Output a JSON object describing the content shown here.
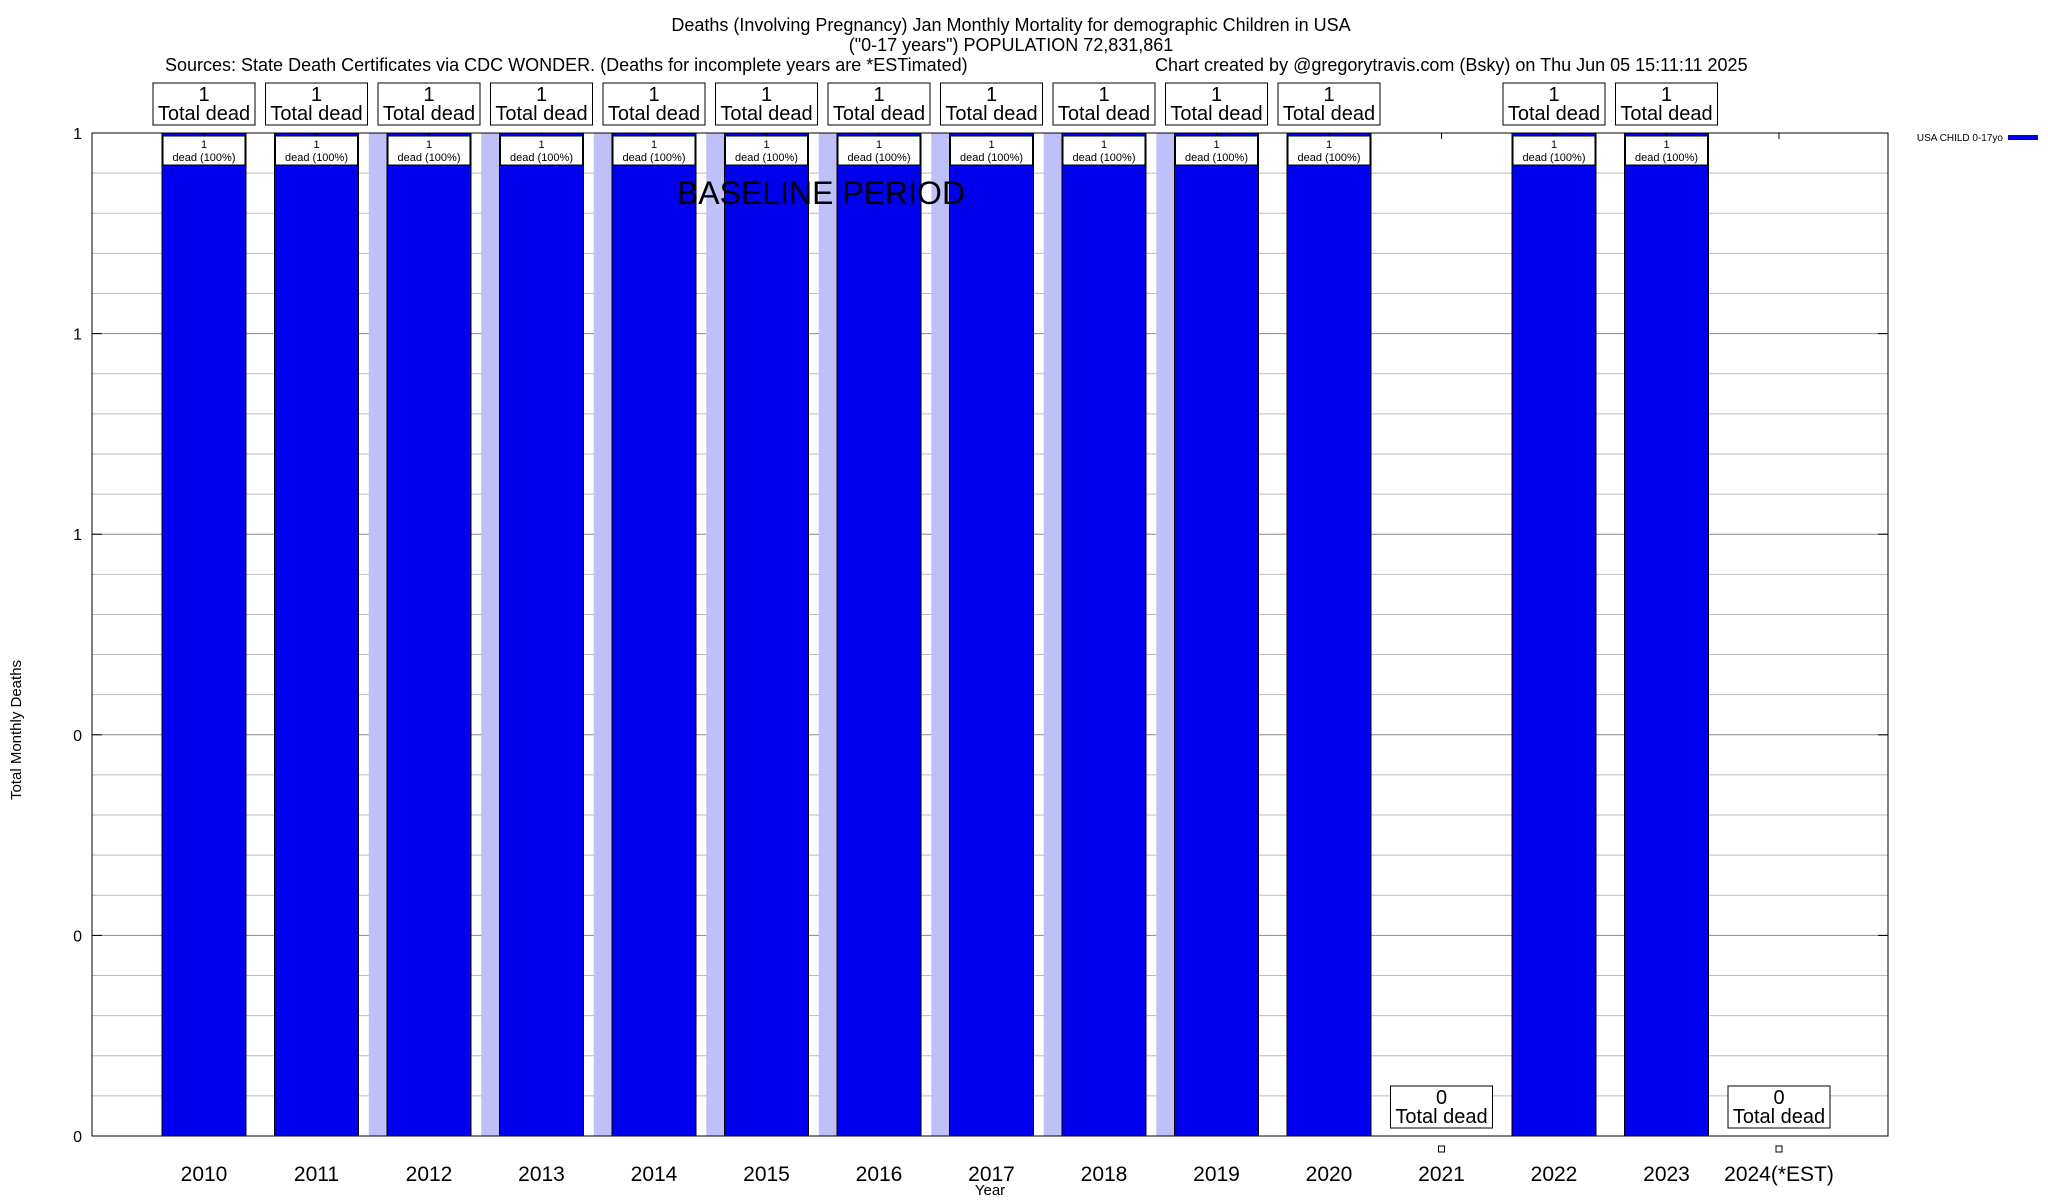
{
  "chart_data": {
    "type": "bar",
    "title_lines": [
      "Deaths (Involving Pregnancy) Jan Monthly Mortality for demographic Children in USA",
      "(\"0-17 years\") POPULATION 72,831,861"
    ],
    "sources_text": "Sources: State Death Certificates via CDC WONDER. (Deaths for incomplete years are *ESTimated)",
    "credit_text": "Chart created by @gregorytravis.com (Bsky) on Thu Jun 05 15:11:11 2025",
    "xlabel": "Year",
    "ylabel": "Total Monthly Deaths",
    "categories": [
      "2010",
      "2011",
      "2012",
      "2013",
      "2014",
      "2015",
      "2016",
      "2017",
      "2018",
      "2019",
      "2020",
      "2021",
      "2022",
      "2023",
      "2024(*EST)"
    ],
    "series": [
      {
        "name": "USA CHILD 0-17yo",
        "color": "#0000ee",
        "values": [
          1,
          1,
          1,
          1,
          1,
          1,
          1,
          1,
          1,
          1,
          1,
          0,
          1,
          1,
          0
        ]
      }
    ],
    "baseline": {
      "label": "BASELINE PERIOD",
      "color": "#c0c0f8",
      "values": [
        0,
        0,
        1,
        1,
        1,
        1,
        1,
        1,
        1,
        1,
        0,
        0,
        0,
        0,
        0
      ]
    },
    "top_labels": [
      {
        "value": "1",
        "text": "Total dead"
      },
      {
        "value": "1",
        "text": "Total dead"
      },
      {
        "value": "1",
        "text": "Total dead"
      },
      {
        "value": "1",
        "text": "Total dead"
      },
      {
        "value": "1",
        "text": "Total dead"
      },
      {
        "value": "1",
        "text": "Total dead"
      },
      {
        "value": "1",
        "text": "Total dead"
      },
      {
        "value": "1",
        "text": "Total dead"
      },
      {
        "value": "1",
        "text": "Total dead"
      },
      {
        "value": "1",
        "text": "Total dead"
      },
      {
        "value": "1",
        "text": "Total dead"
      },
      {
        "value": "0",
        "text": "Total dead"
      },
      {
        "value": "1",
        "text": "Total dead"
      },
      {
        "value": "1",
        "text": "Total dead"
      },
      {
        "value": "0",
        "text": "Total dead"
      }
    ],
    "bar_labels": [
      {
        "value": "1",
        "text": "dead (100%)"
      },
      {
        "value": "1",
        "text": "dead (100%)"
      },
      {
        "value": "1",
        "text": "dead (100%)"
      },
      {
        "value": "1",
        "text": "dead (100%)"
      },
      {
        "value": "1",
        "text": "dead (100%)"
      },
      {
        "value": "1",
        "text": "dead (100%)"
      },
      {
        "value": "1",
        "text": "dead (100%)"
      },
      {
        "value": "1",
        "text": "dead (100%)"
      },
      {
        "value": "1",
        "text": "dead (100%)"
      },
      {
        "value": "1",
        "text": "dead (100%)"
      },
      {
        "value": "1",
        "text": "dead (100%)"
      },
      null,
      {
        "value": "1",
        "text": "dead (100%)"
      },
      {
        "value": "1",
        "text": "dead (100%)"
      },
      null
    ],
    "ylim": [
      0,
      1
    ],
    "ytick_labels": [
      "0",
      "0",
      "0",
      "1",
      "1",
      "1"
    ],
    "minor_gridlines_per_major": 5,
    "grid": true,
    "legend_position": "top-right"
  }
}
